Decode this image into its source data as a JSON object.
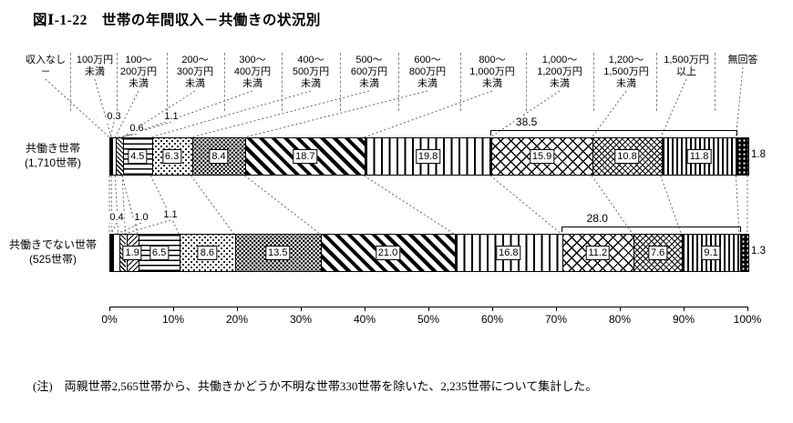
{
  "figure": {
    "title": "図Ⅰ-1-22　世帯の年間収入－共働きの状況別",
    "note": "(注)　両親世帯2,565世帯から、共働きかどうか不明な世帯330世帯を除いた、2,235世帯について集計した。"
  },
  "chart_data": {
    "type": "bar",
    "subtype": "horizontal-stacked-100percent",
    "unit": "%",
    "categories": [
      "収入なし",
      "100万円未満",
      "100～200万円未満",
      "200～300万円未満",
      "300～400万円未満",
      "400～500万円未満",
      "500～600万円未満",
      "600～800万円未満",
      "800～1,000万円未満",
      "1,000～1,200万円未満",
      "1,200～1,500万円未満",
      "1,500万円以上",
      "無回答"
    ],
    "category_display": [
      "収入なし\n－",
      "100万円\n未満",
      "100～\n200万円\n未満",
      "200～\n300万円\n未満",
      "300～\n400万円\n未満",
      "400～\n500万円\n未満",
      "500～\n600万円\n未満",
      "600～\n800万円\n未満",
      "800～\n1,000万円\n未満",
      "1,000～\n1,200万円\n未満",
      "1,200～\n1,500万円\n未満",
      "1,500万円\n以上",
      "無回答"
    ],
    "series": [
      {
        "name": "共働き世帯",
        "count_label": "(1,710世帯)",
        "values": [
          0.3,
          0.6,
          1.1,
          null,
          4.5,
          6.3,
          8.4,
          18.7,
          19.8,
          15.9,
          10.8,
          11.8,
          1.8
        ],
        "bracket": {
          "value": 38.5,
          "from": 9,
          "to": 11
        }
      },
      {
        "name": "共働きでない世帯",
        "count_label": "(525世帯)",
        "values": [
          0.4,
          1.0,
          1.1,
          1.9,
          6.5,
          8.6,
          13.5,
          21.0,
          16.8,
          11.2,
          7.6,
          9.1,
          1.3
        ],
        "bracket": {
          "value": 28.0,
          "from": 9,
          "to": 11
        }
      }
    ],
    "x_axis": {
      "min": 0,
      "max": 100,
      "ticks": [
        "0%",
        "10%",
        "20%",
        "30%",
        "40%",
        "50%",
        "60%",
        "70%",
        "80%",
        "90%",
        "100%"
      ],
      "grid": false
    },
    "legend_position": "top-labels-with-leader-lines"
  }
}
